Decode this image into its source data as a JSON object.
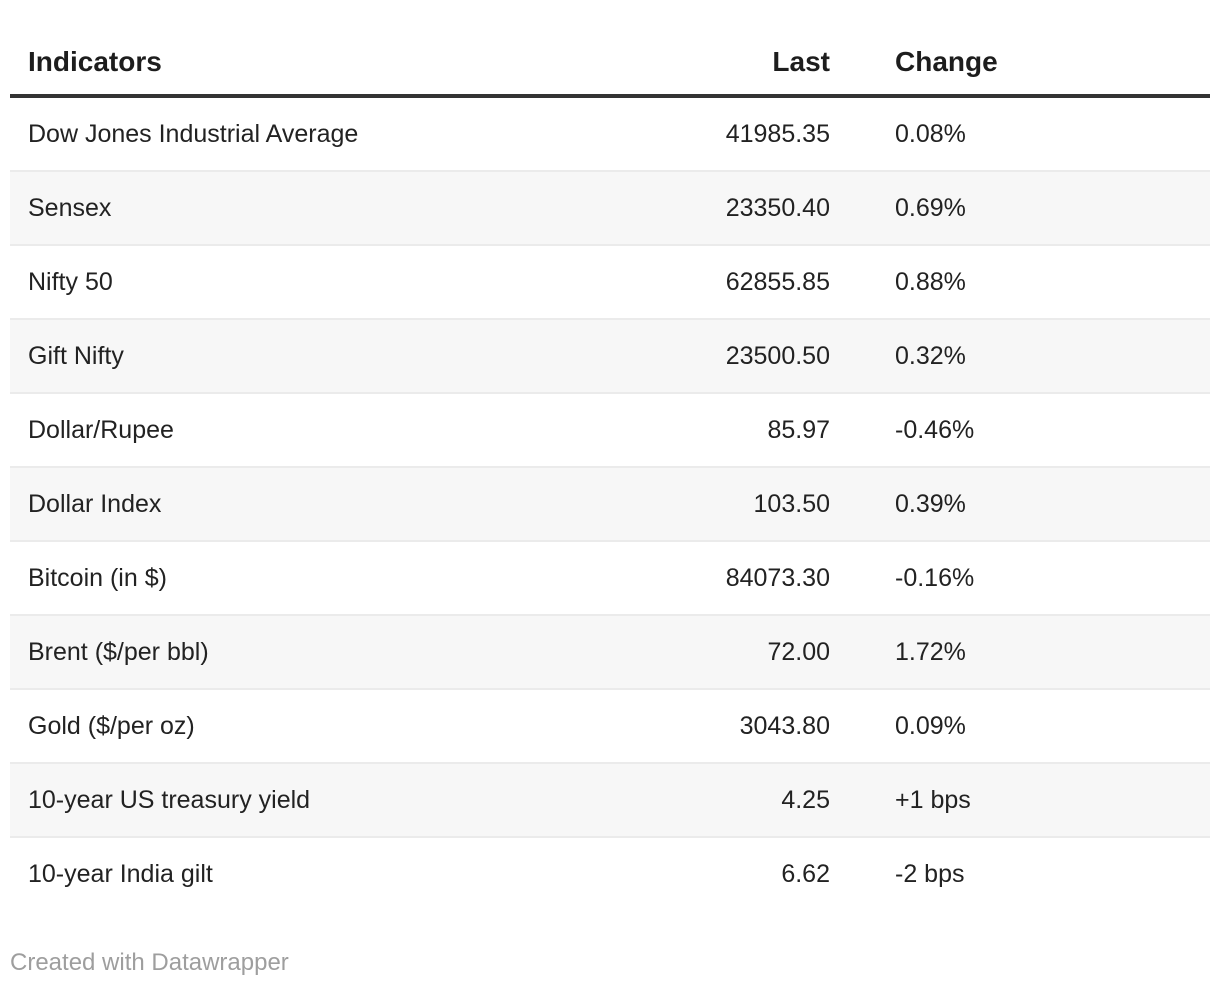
{
  "chart_data": {
    "type": "table",
    "columns": [
      "Indicators",
      "Last",
      "Change"
    ],
    "rows": [
      {
        "indicator": "Dow Jones Industrial Average",
        "last": "41985.35",
        "change": "0.08%"
      },
      {
        "indicator": "Sensex",
        "last": "23350.40",
        "change": "0.69%"
      },
      {
        "indicator": "Nifty 50",
        "last": "62855.85",
        "change": "0.88%"
      },
      {
        "indicator": "Gift Nifty",
        "last": "23500.50",
        "change": "0.32%"
      },
      {
        "indicator": "Dollar/Rupee",
        "last": "85.97",
        "change": "-0.46%"
      },
      {
        "indicator": "Dollar Index",
        "last": "103.50",
        "change": "0.39%"
      },
      {
        "indicator": "Bitcoin (in $)",
        "last": "84073.30",
        "change": "-0.16%"
      },
      {
        "indicator": "Brent ($/per bbl)",
        "last": "72.00",
        "change": "1.72%"
      },
      {
        "indicator": "Gold ($/per oz)",
        "last": "3043.80",
        "change": "0.09%"
      },
      {
        "indicator": "10-year US treasury yield",
        "last": "4.25",
        "change": "+1 bps"
      },
      {
        "indicator": "10-year India gilt",
        "last": "6.62",
        "change": "-2 bps"
      }
    ],
    "layout": {
      "striped_rows": true,
      "stripe_pattern": "even rows white, odd rows gray (1-based: rows 2,4,6,8,10 gray)",
      "last_column_align": "right",
      "grid": "horizontal row dividers only, thick rule under header"
    }
  },
  "footer": {
    "credit_label": "Created with Datawrapper"
  },
  "colors": {
    "background": "#ffffff",
    "header_text": "#1d1d1d",
    "header_rule": "#333333",
    "body_text": "#222222",
    "row_alt_bg": "#f7f7f7",
    "row_divider": "#ebebeb",
    "credit_text": "#9e9e9e"
  }
}
